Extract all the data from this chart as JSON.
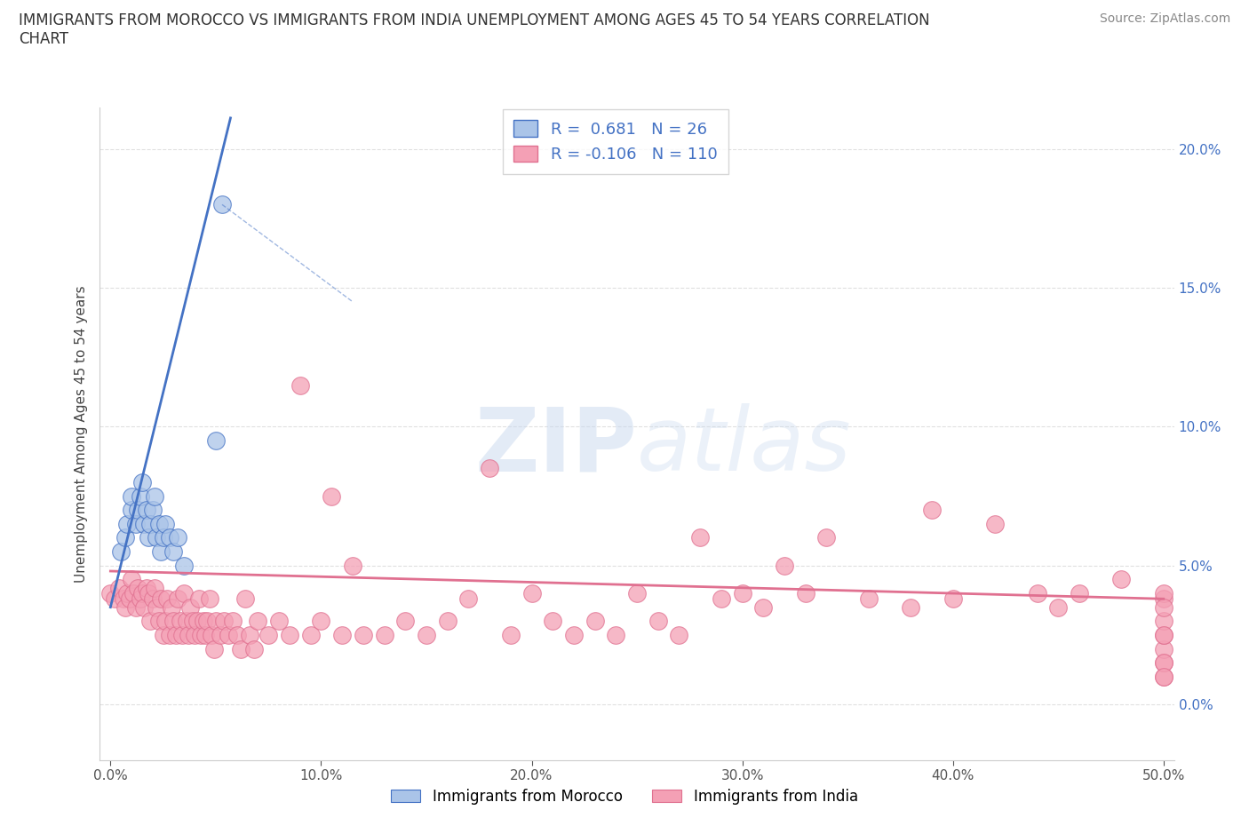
{
  "title": "IMMIGRANTS FROM MOROCCO VS IMMIGRANTS FROM INDIA UNEMPLOYMENT AMONG AGES 45 TO 54 YEARS CORRELATION\nCHART",
  "source_text": "Source: ZipAtlas.com",
  "ylabel": "Unemployment Among Ages 45 to 54 years",
  "xlim": [
    -0.005,
    0.505
  ],
  "ylim": [
    -0.02,
    0.215
  ],
  "x_ticks": [
    0.0,
    0.1,
    0.2,
    0.3,
    0.4,
    0.5
  ],
  "x_tick_labels": [
    "0.0%",
    "10.0%",
    "20.0%",
    "30.0%",
    "40.0%",
    "50.0%"
  ],
  "y_ticks": [
    0.0,
    0.05,
    0.1,
    0.15,
    0.2
  ],
  "y_tick_labels": [
    "0.0%",
    "5.0%",
    "10.0%",
    "15.0%",
    "20.0%"
  ],
  "morocco_R": 0.681,
  "morocco_N": 26,
  "india_R": -0.106,
  "india_N": 110,
  "morocco_color": "#aac4e8",
  "morocco_line_color": "#4472c4",
  "india_color": "#f4a0b5",
  "india_line_color": "#e07090",
  "watermark_color": "#d0dff0",
  "background_color": "#ffffff",
  "grid_color": "#e0e0e0",
  "tick_color": "#4472c4",
  "morocco_scatter_x": [
    0.005,
    0.007,
    0.008,
    0.01,
    0.01,
    0.012,
    0.013,
    0.014,
    0.015,
    0.016,
    0.017,
    0.018,
    0.019,
    0.02,
    0.021,
    0.022,
    0.023,
    0.024,
    0.025,
    0.026,
    0.028,
    0.03,
    0.032,
    0.035,
    0.05,
    0.053
  ],
  "morocco_scatter_y": [
    0.055,
    0.06,
    0.065,
    0.07,
    0.075,
    0.065,
    0.07,
    0.075,
    0.08,
    0.065,
    0.07,
    0.06,
    0.065,
    0.07,
    0.075,
    0.06,
    0.065,
    0.055,
    0.06,
    0.065,
    0.06,
    0.055,
    0.06,
    0.05,
    0.095,
    0.18
  ],
  "india_scatter_x": [
    0.0,
    0.002,
    0.004,
    0.006,
    0.007,
    0.008,
    0.009,
    0.01,
    0.011,
    0.012,
    0.013,
    0.014,
    0.015,
    0.016,
    0.017,
    0.018,
    0.019,
    0.02,
    0.021,
    0.022,
    0.023,
    0.024,
    0.025,
    0.026,
    0.027,
    0.028,
    0.029,
    0.03,
    0.031,
    0.032,
    0.033,
    0.034,
    0.035,
    0.036,
    0.037,
    0.038,
    0.039,
    0.04,
    0.041,
    0.042,
    0.043,
    0.044,
    0.045,
    0.046,
    0.047,
    0.048,
    0.049,
    0.05,
    0.052,
    0.054,
    0.056,
    0.058,
    0.06,
    0.062,
    0.064,
    0.066,
    0.068,
    0.07,
    0.075,
    0.08,
    0.085,
    0.09,
    0.095,
    0.1,
    0.105,
    0.11,
    0.115,
    0.12,
    0.13,
    0.14,
    0.15,
    0.16,
    0.17,
    0.18,
    0.19,
    0.2,
    0.21,
    0.22,
    0.23,
    0.24,
    0.25,
    0.26,
    0.27,
    0.28,
    0.29,
    0.3,
    0.31,
    0.32,
    0.33,
    0.34,
    0.36,
    0.38,
    0.39,
    0.4,
    0.42,
    0.44,
    0.45,
    0.46,
    0.48,
    0.5,
    0.5,
    0.5,
    0.5,
    0.5,
    0.5,
    0.5,
    0.5,
    0.5,
    0.5,
    0.5
  ],
  "india_scatter_y": [
    0.04,
    0.038,
    0.042,
    0.038,
    0.035,
    0.04,
    0.038,
    0.045,
    0.04,
    0.035,
    0.042,
    0.038,
    0.04,
    0.035,
    0.042,
    0.04,
    0.03,
    0.038,
    0.042,
    0.035,
    0.03,
    0.038,
    0.025,
    0.03,
    0.038,
    0.025,
    0.035,
    0.03,
    0.025,
    0.038,
    0.03,
    0.025,
    0.04,
    0.03,
    0.025,
    0.035,
    0.03,
    0.025,
    0.03,
    0.038,
    0.025,
    0.03,
    0.025,
    0.03,
    0.038,
    0.025,
    0.02,
    0.03,
    0.025,
    0.03,
    0.025,
    0.03,
    0.025,
    0.02,
    0.038,
    0.025,
    0.02,
    0.03,
    0.025,
    0.03,
    0.025,
    0.115,
    0.025,
    0.03,
    0.075,
    0.025,
    0.05,
    0.025,
    0.025,
    0.03,
    0.025,
    0.03,
    0.038,
    0.085,
    0.025,
    0.04,
    0.03,
    0.025,
    0.03,
    0.025,
    0.04,
    0.03,
    0.025,
    0.06,
    0.038,
    0.04,
    0.035,
    0.05,
    0.04,
    0.06,
    0.038,
    0.035,
    0.07,
    0.038,
    0.065,
    0.04,
    0.035,
    0.04,
    0.045,
    0.038,
    0.01,
    0.015,
    0.02,
    0.025,
    0.03,
    0.04,
    0.015,
    0.01,
    0.025,
    0.035
  ]
}
